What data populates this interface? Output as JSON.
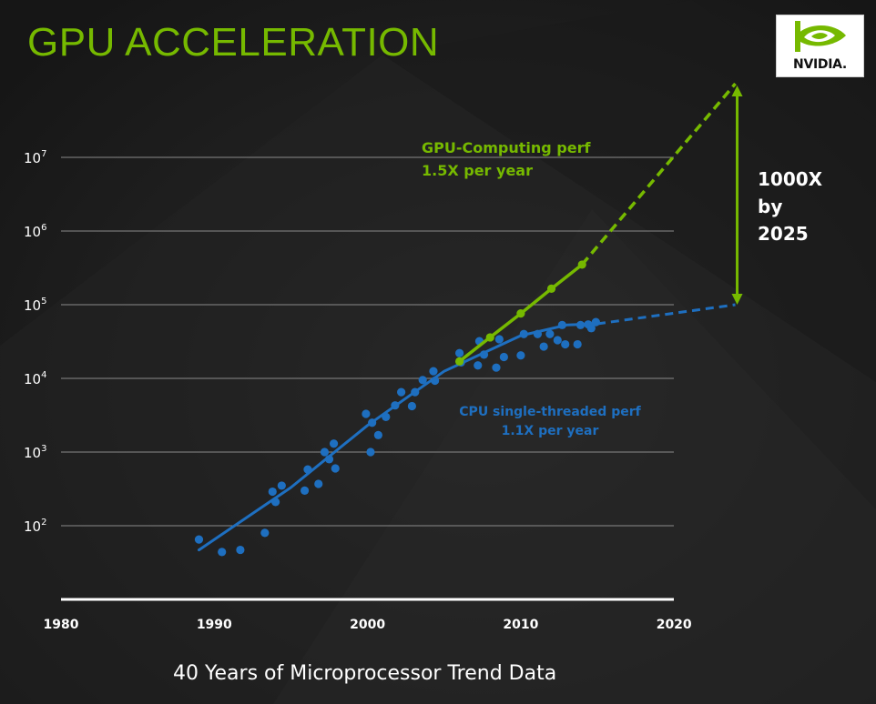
{
  "slide": {
    "title": "GPU ACCELERATION",
    "subtitle": "40 Years of Microprocessor Trend Data",
    "logo_text": "NVIDIA.",
    "colors": {
      "accent_green": "#76b900",
      "cpu_blue": "#1e6fc0",
      "background": "#1b1b1b",
      "grid": "#8a8a8a",
      "text": "#ffffff"
    }
  },
  "chart_data": {
    "type": "scatter",
    "title": "40 Years of Microprocessor Trend Data",
    "xlabel": "",
    "ylabel": "",
    "y_scale": "log",
    "xlim": [
      1980,
      2020
    ],
    "ylim_exponent": [
      1.0,
      7.5
    ],
    "x_ticks": [
      1980,
      1990,
      2000,
      2010,
      2020
    ],
    "y_ticks": [
      {
        "base": "10",
        "exp": "2",
        "value": 100
      },
      {
        "base": "10",
        "exp": "3",
        "value": 1000
      },
      {
        "base": "10",
        "exp": "4",
        "value": 10000
      },
      {
        "base": "10",
        "exp": "5",
        "value": 100000
      },
      {
        "base": "10",
        "exp": "6",
        "value": 1000000
      },
      {
        "base": "10",
        "exp": "7",
        "value": 10000000
      }
    ],
    "grid": true,
    "series": [
      {
        "name": "GPU-Computing perf",
        "rate_label": "1.5X per year",
        "color": "#76b900",
        "points": [
          {
            "x": 2006,
            "y": 17000
          },
          {
            "x": 2008,
            "y": 36000
          },
          {
            "x": 2010,
            "y": 76000
          },
          {
            "x": 2012,
            "y": 165000
          },
          {
            "x": 2014,
            "y": 350000
          }
        ],
        "projection": [
          {
            "x": 2014,
            "y": 350000
          },
          {
            "x": 2024,
            "y": 100000000
          }
        ]
      },
      {
        "name": "CPU single-threaded perf",
        "rate_label": "1.1X per year",
        "color": "#1e6fc0",
        "points": [
          {
            "x": 1989,
            "y": 65
          },
          {
            "x": 1990.5,
            "y": 44
          },
          {
            "x": 1991.7,
            "y": 47
          },
          {
            "x": 1993.3,
            "y": 80
          },
          {
            "x": 1993.8,
            "y": 290
          },
          {
            "x": 1994,
            "y": 210
          },
          {
            "x": 1994.4,
            "y": 350
          },
          {
            "x": 1995.9,
            "y": 300
          },
          {
            "x": 1996.1,
            "y": 580
          },
          {
            "x": 1996.8,
            "y": 370
          },
          {
            "x": 1997.2,
            "y": 1000
          },
          {
            "x": 1997.5,
            "y": 800
          },
          {
            "x": 1997.8,
            "y": 1300
          },
          {
            "x": 1997.9,
            "y": 600
          },
          {
            "x": 1999.9,
            "y": 3300
          },
          {
            "x": 2000.2,
            "y": 1000
          },
          {
            "x": 2000.3,
            "y": 2500
          },
          {
            "x": 2000.7,
            "y": 1700
          },
          {
            "x": 2001.2,
            "y": 3000
          },
          {
            "x": 2001.8,
            "y": 4300
          },
          {
            "x": 2002.2,
            "y": 6500
          },
          {
            "x": 2002.9,
            "y": 4200
          },
          {
            "x": 2003.1,
            "y": 6500
          },
          {
            "x": 2003.6,
            "y": 9500
          },
          {
            "x": 2004.3,
            "y": 12500
          },
          {
            "x": 2004.4,
            "y": 9300
          },
          {
            "x": 2006,
            "y": 22000
          },
          {
            "x": 2006.1,
            "y": 16500
          },
          {
            "x": 2007.2,
            "y": 15000
          },
          {
            "x": 2007.3,
            "y": 32000
          },
          {
            "x": 2007.6,
            "y": 21000
          },
          {
            "x": 2008.4,
            "y": 14000
          },
          {
            "x": 2008.6,
            "y": 34000
          },
          {
            "x": 2008.9,
            "y": 19500
          },
          {
            "x": 2010,
            "y": 20500
          },
          {
            "x": 2010.2,
            "y": 40000
          },
          {
            "x": 2011.1,
            "y": 40000
          },
          {
            "x": 2011.5,
            "y": 27000
          },
          {
            "x": 2011.9,
            "y": 40000
          },
          {
            "x": 2012.4,
            "y": 33000
          },
          {
            "x": 2012.7,
            "y": 53000
          },
          {
            "x": 2012.9,
            "y": 29000
          },
          {
            "x": 2013.7,
            "y": 29000
          },
          {
            "x": 2013.9,
            "y": 53000
          },
          {
            "x": 2014.4,
            "y": 54000
          },
          {
            "x": 2014.6,
            "y": 48000
          },
          {
            "x": 2014.9,
            "y": 58000
          }
        ],
        "trend": [
          {
            "x": 1989,
            "y": 47
          },
          {
            "x": 1995,
            "y": 330
          },
          {
            "x": 2000,
            "y": 2300
          },
          {
            "x": 2005,
            "y": 12500
          },
          {
            "x": 2010,
            "y": 38000
          },
          {
            "x": 2013,
            "y": 53000
          },
          {
            "x": 2015,
            "y": 55000
          }
        ],
        "projection": [
          {
            "x": 2015,
            "y": 55000
          },
          {
            "x": 2024,
            "y": 100000
          }
        ]
      }
    ],
    "annotations": {
      "gpu_label_line1": "GPU-Computing perf",
      "gpu_label_line2": "1.5X per year",
      "cpu_label_line1": "CPU single-threaded perf",
      "cpu_label_line2": "1.1X per year",
      "gap_line1": "1000X",
      "gap_line2": "by",
      "gap_line3": "2025",
      "gap_x": 2024,
      "gap_y_low": 100000,
      "gap_y_high": 100000000
    }
  }
}
